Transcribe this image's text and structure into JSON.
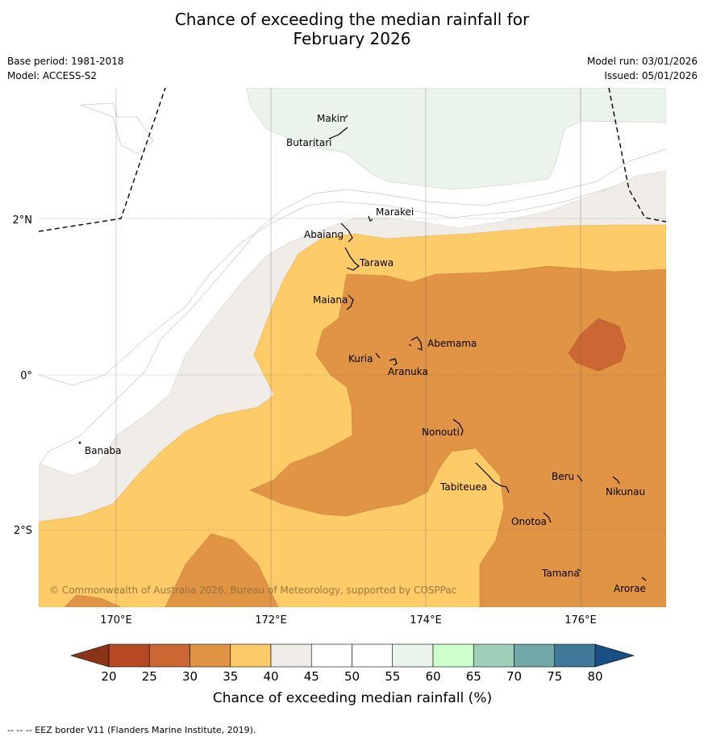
{
  "title_line1": "Chance of exceeding the median rainfall for",
  "title_line2": "February 2026",
  "base_period": "Base period: 1981-2018",
  "model": "Model: ACCESS-S2",
  "model_run": "Model run: 03/01/2026",
  "issued": "Issued: 05/01/2026",
  "copyright": "© Commonwealth of Australia 2026, Bureau of Meteorology, supported by COSPPac",
  "lat_labels": [
    "2°N",
    "0°",
    "2°S"
  ],
  "lon_labels": [
    "170°E",
    "172°E",
    "174°E",
    "176°E"
  ],
  "islands": [
    "Makin",
    "Butaritari",
    "Marakei",
    "Abaiang",
    "Tarawa",
    "Maiana",
    "Abemama",
    "Kuria",
    "Aranuka",
    "Banaba",
    "Nonouti",
    "Beru",
    "Nikunau",
    "Tabiteuea",
    "Onotoa",
    "Tamana",
    "Arorae"
  ],
  "colorbar": {
    "ticks": [
      "20",
      "25",
      "30",
      "35",
      "40",
      "45",
      "50",
      "55",
      "60",
      "65",
      "70",
      "75",
      "80"
    ],
    "colors": [
      "#b34a24",
      "#cc6633",
      "#e09444",
      "#fdcb68",
      "#f0ede8",
      "#ffffff",
      "#ffffff",
      "#eaf4ea",
      "#ccffcc",
      "#9fcfb8",
      "#70a8a8",
      "#3f7898"
    ],
    "under_color": "#8c3418",
    "over_color": "#1a4f86",
    "label": "Chance of exceeding median rainfall (%)"
  },
  "footer": "--  --  -- EEZ border V11 (Flanders Marine Institute, 2019)."
}
